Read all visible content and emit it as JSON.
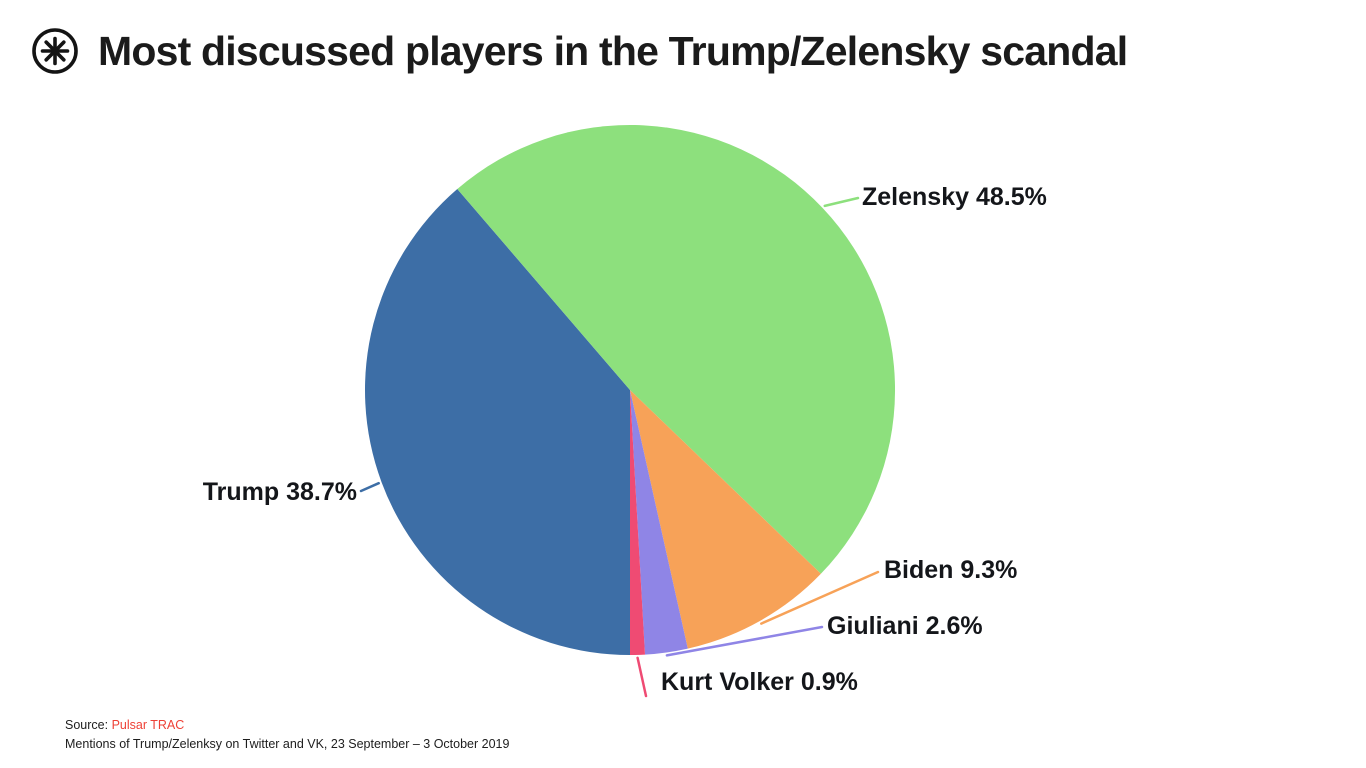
{
  "header": {
    "title": "Most discussed players in the Trump/Zelensky scandal",
    "logo_icon": "pulsar-asterisk-logo",
    "logo_color": "#141414"
  },
  "chart_data": {
    "type": "pie",
    "title": "Most discussed players in the Trump/Zelensky scandal",
    "unit": "%",
    "start_angle_deg": 180,
    "direction": "clockwise",
    "legend": "none",
    "label_style": "external-leader-lines",
    "slices": [
      {
        "name": "Trump",
        "value": 38.7,
        "color": "#3d6ea6",
        "label": "Trump 38.7%"
      },
      {
        "name": "Zelensky",
        "value": 48.5,
        "color": "#8de07d",
        "label": "Zelensky 48.5%"
      },
      {
        "name": "Biden",
        "value": 9.3,
        "color": "#f7a258",
        "label": "Biden 9.3%"
      },
      {
        "name": "Giuliani",
        "value": 2.6,
        "color": "#8f85e6",
        "label": "Giuliani 2.6%"
      },
      {
        "name": "Kurt Volker",
        "value": 0.9,
        "color": "#ef4b73",
        "label": "Kurt Volker 0.9%"
      }
    ]
  },
  "footer": {
    "source_prefix": "Source:",
    "source_link": "Pulsar TRAC",
    "source_link_color": "#ee4237",
    "note": "Mentions of Trump/Zelenksy on Twitter and VK, 23 September – 3 October 2019"
  }
}
